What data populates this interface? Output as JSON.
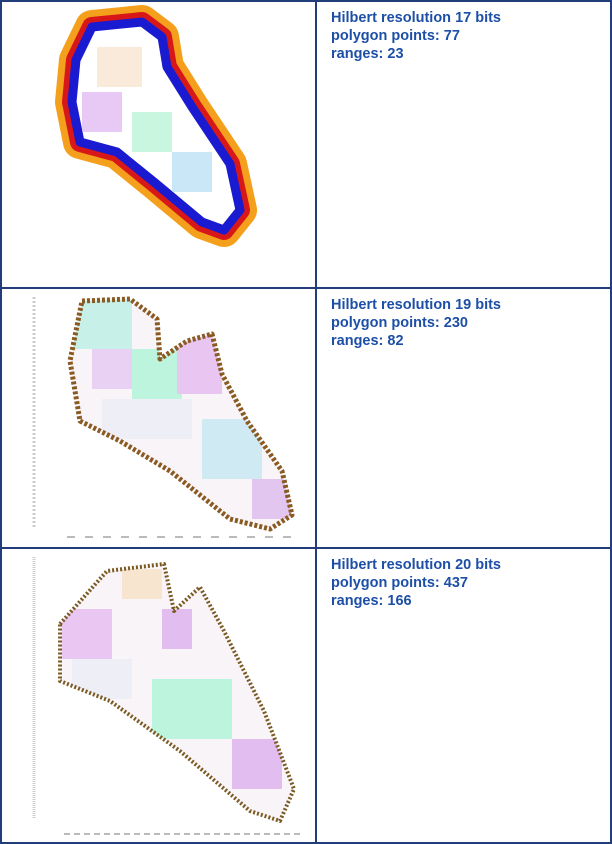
{
  "table": {
    "rows": [
      {
        "lines": [
          "Hilbert resolution 17 bits",
          "polygon points: 77",
          "ranges: 23"
        ]
      },
      {
        "lines": [
          "Hilbert resolution 19 bits",
          "polygon points: 230",
          "ranges: 82"
        ]
      },
      {
        "lines": [
          "Hilbert resolution 20 bits",
          "polygon points: 437",
          "ranges: 166"
        ]
      }
    ]
  }
}
